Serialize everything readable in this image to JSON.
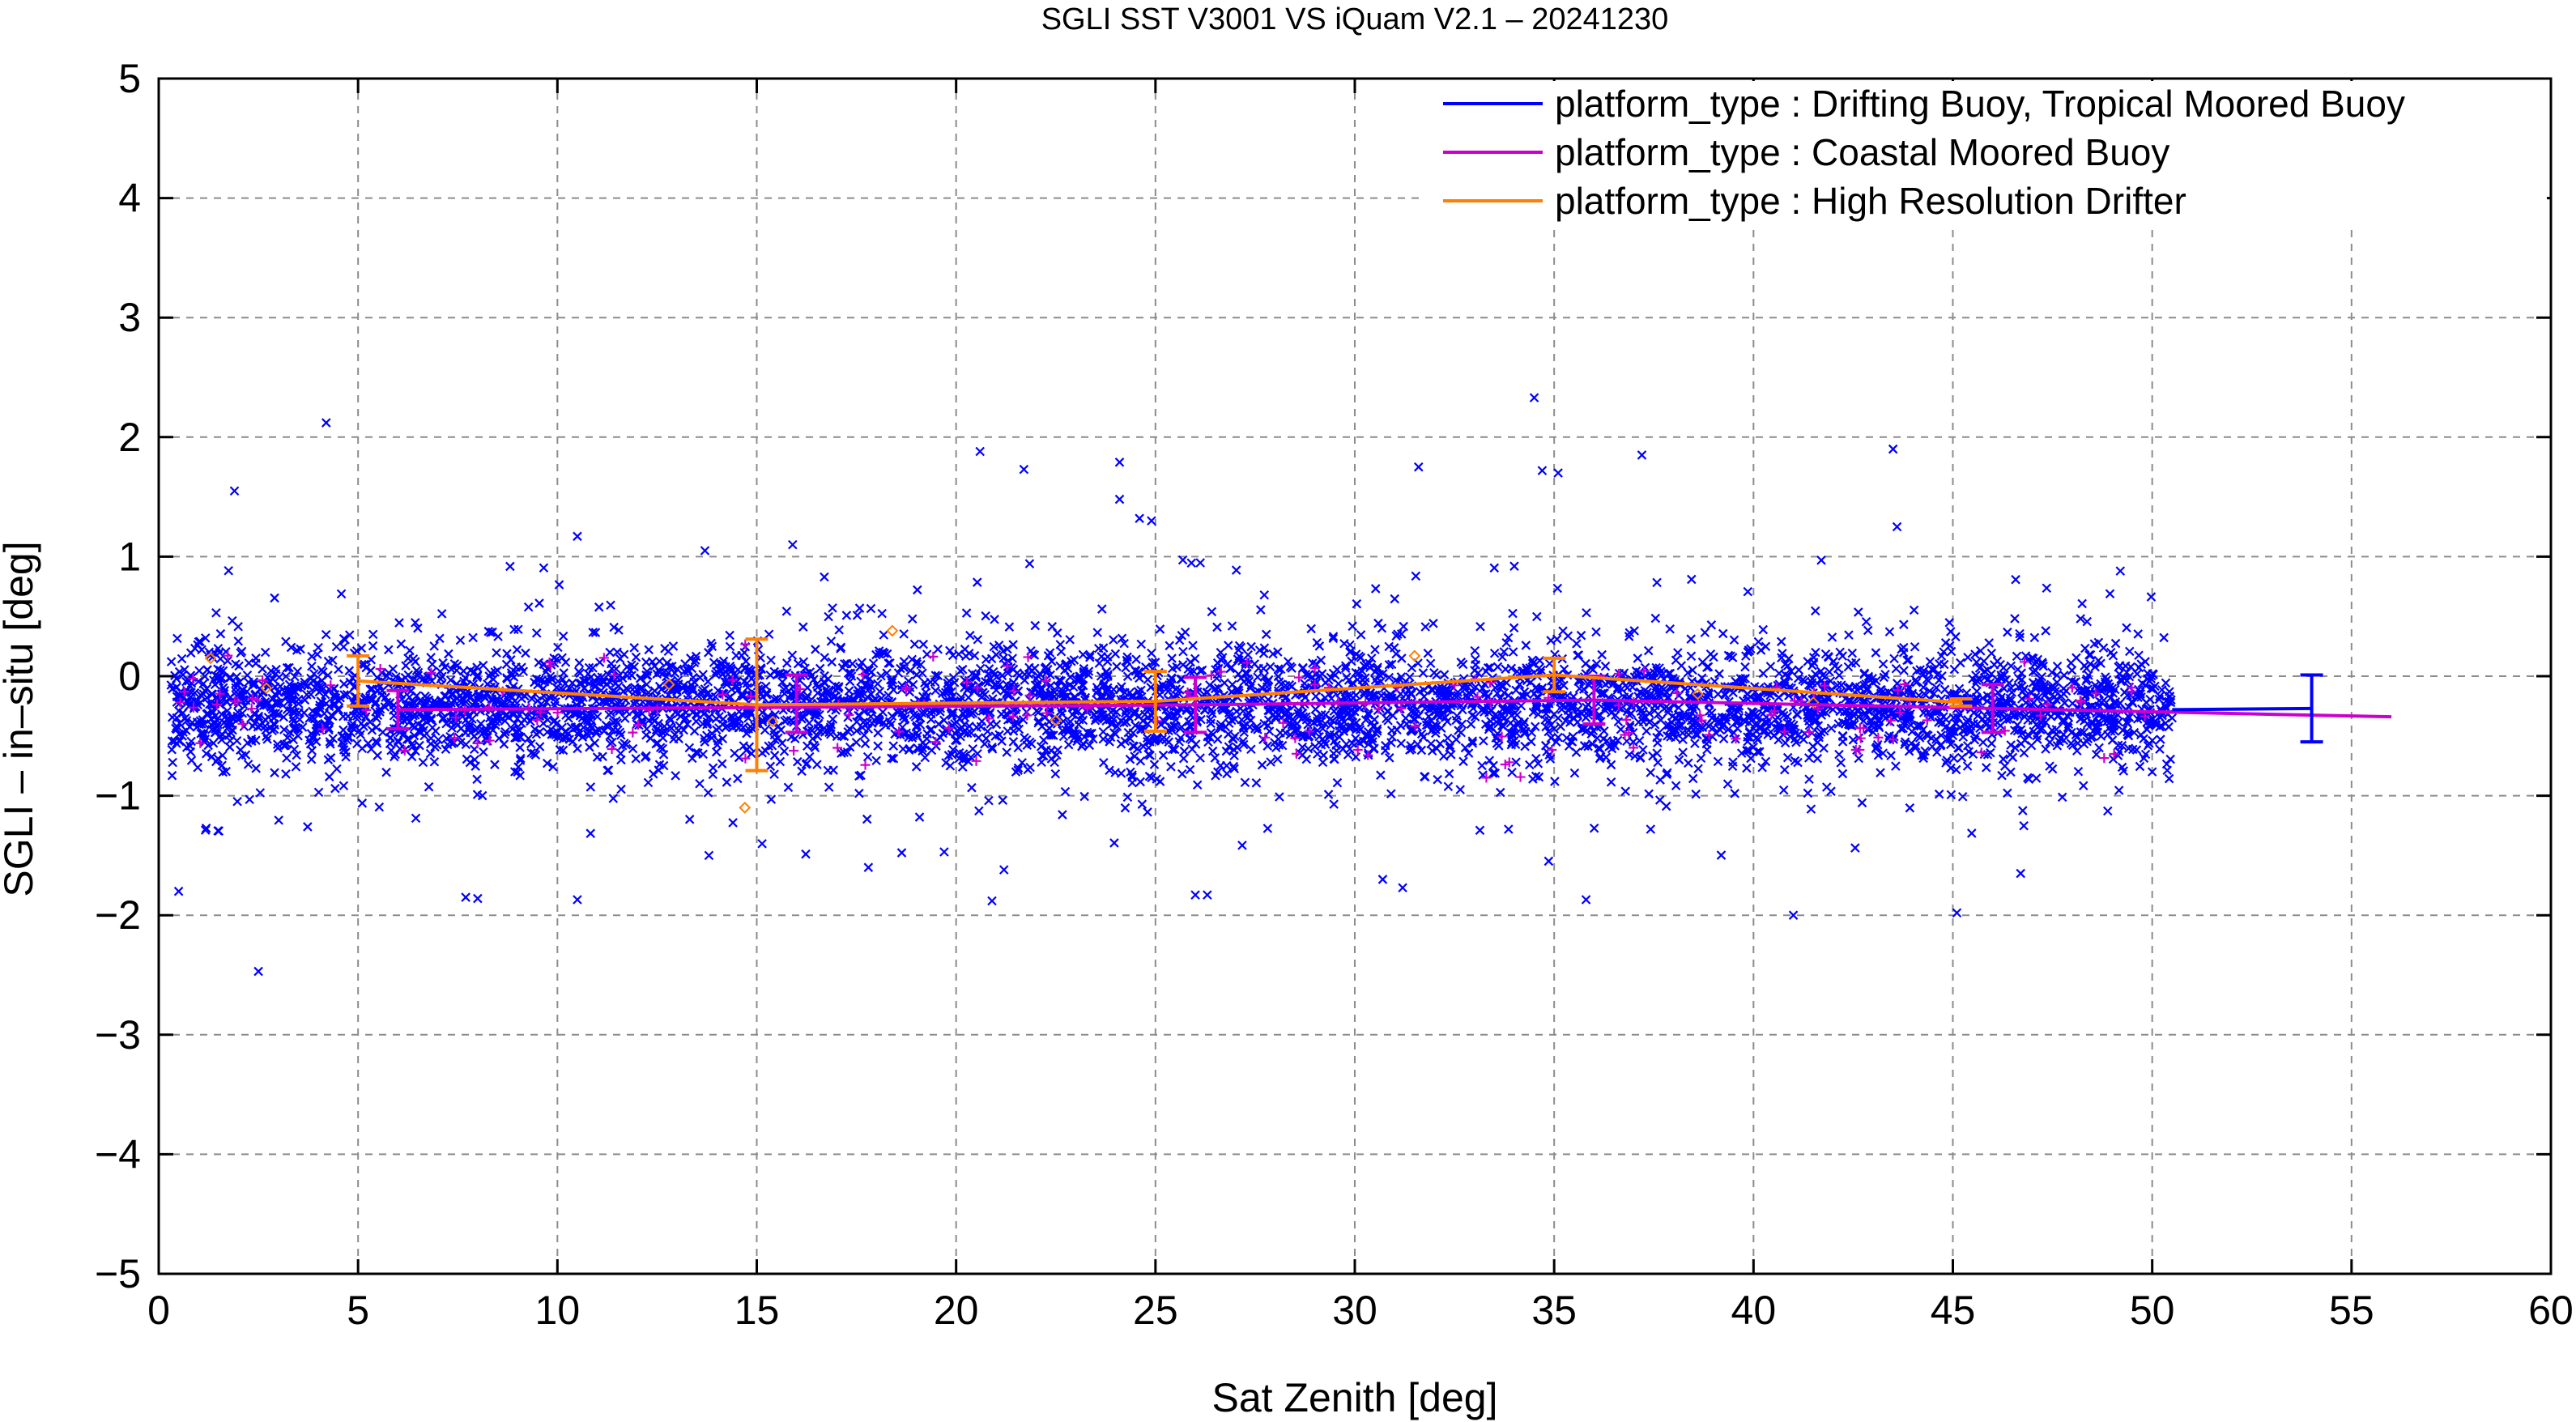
{
  "chart_data": {
    "type": "scatter",
    "title": "SGLI SST V3001 VS iQuam V2.1  – 20241230",
    "xlabel": "Sat Zenith [deg]",
    "ylabel": "SGLI – in–situ [deg]",
    "xlim": [
      0,
      60
    ],
    "ylim": [
      -5,
      5
    ],
    "x_ticks": [
      0,
      5,
      10,
      15,
      20,
      25,
      30,
      35,
      40,
      45,
      50,
      55,
      60
    ],
    "y_ticks": [
      -5,
      -4,
      -3,
      -2,
      -1,
      0,
      1,
      2,
      3,
      4,
      5
    ],
    "x_tick_labels": [
      "0",
      "5",
      "10",
      "15",
      "20",
      "25",
      "30",
      "35",
      "40",
      "45",
      "50",
      "55",
      "60"
    ],
    "y_tick_labels": [
      "−5",
      "−4",
      "−3",
      "−2",
      "−1",
      "0",
      "1",
      "2",
      "3",
      "4",
      "5"
    ],
    "grid": true,
    "legend_position": "top-right",
    "series": [
      {
        "name": "platform_type : Drifting Buoy, Tropical Moored Buoy",
        "color": "#0000ff",
        "marker": "x",
        "scatter_x_range": [
          0.3,
          50.5
        ],
        "scatter_center": -0.25,
        "scatter_spread": 0.4,
        "outliers": [
          {
            "x": 4.2,
            "y": 2.12
          },
          {
            "x": 1.9,
            "y": 1.55
          },
          {
            "x": 2.5,
            "y": -2.47
          },
          {
            "x": 0.5,
            "y": -1.8
          },
          {
            "x": 10.5,
            "y": 1.17
          },
          {
            "x": 10.5,
            "y": -1.87
          },
          {
            "x": 20.6,
            "y": 1.88
          },
          {
            "x": 21.7,
            "y": 1.73
          },
          {
            "x": 24.1,
            "y": 1.79
          },
          {
            "x": 24.1,
            "y": 1.48
          },
          {
            "x": 31.6,
            "y": 1.75
          },
          {
            "x": 34.5,
            "y": 2.33
          },
          {
            "x": 34.7,
            "y": 1.72
          },
          {
            "x": 35.1,
            "y": 1.7
          },
          {
            "x": 37.2,
            "y": 1.85
          },
          {
            "x": 43.5,
            "y": 1.9
          },
          {
            "x": 43.6,
            "y": 1.25
          },
          {
            "x": 41.0,
            "y": -2.0
          },
          {
            "x": 45.1,
            "y": -1.98
          },
          {
            "x": 20.9,
            "y": -1.88
          },
          {
            "x": 7.7,
            "y": -1.85
          },
          {
            "x": 8.0,
            "y": -1.86
          },
          {
            "x": 31.2,
            "y": -1.77
          },
          {
            "x": 35.8,
            "y": -1.87
          },
          {
            "x": 26.0,
            "y": -1.83
          },
          {
            "x": 26.3,
            "y": -1.83
          },
          {
            "x": 30.7,
            "y": -1.7
          },
          {
            "x": 19.7,
            "y": -1.47
          },
          {
            "x": 21.2,
            "y": -1.62
          },
          {
            "x": 13.7,
            "y": 1.05
          },
          {
            "x": 15.9,
            "y": 1.1
          },
          {
            "x": 24.6,
            "y": 1.32
          },
          {
            "x": 24.9,
            "y": 1.3
          },
          {
            "x": 41.7,
            "y": 0.97
          },
          {
            "x": 49.2,
            "y": 0.88
          },
          {
            "x": 46.7,
            "y": -1.65
          },
          {
            "x": 13.8,
            "y": -1.5
          },
          {
            "x": 17.8,
            "y": -1.6
          },
          {
            "x": 34.0,
            "y": 0.92
          }
        ],
        "mean_x": [
          54.0
        ],
        "mean_y": [
          -0.27
        ],
        "err": [
          0.28
        ],
        "line_x": [
          50.5,
          54.0
        ],
        "line_y": [
          -0.28,
          -0.27
        ]
      },
      {
        "name": "platform_type : Coastal Moored Buoy",
        "color": "#cc00cc",
        "marker": "+",
        "line_x": [
          6,
          16,
          26,
          36,
          46,
          56
        ],
        "line_y": [
          -0.28,
          -0.26,
          -0.24,
          -0.2,
          -0.27,
          -0.34
        ],
        "err": [
          0.16,
          0.24,
          0.23,
          0.2,
          0.2,
          0.0
        ],
        "err_x": [
          6,
          16,
          26,
          36,
          46
        ],
        "err_y": [
          -0.28,
          -0.23,
          -0.24,
          -0.2,
          -0.27
        ]
      },
      {
        "name": "platform_type : High Resolution Drifter",
        "color": "#ff8000",
        "marker": "diamond",
        "line_x": [
          5,
          15,
          25,
          35,
          45.2
        ],
        "line_y": [
          -0.04,
          -0.24,
          -0.21,
          0.01,
          -0.22
        ],
        "err": [
          0.21,
          0.55,
          0.25,
          0.14,
          0.03
        ],
        "scatter": [
          {
            "x": 2.7,
            "y": -0.1
          },
          {
            "x": 14.7,
            "y": -1.1
          },
          {
            "x": 18.4,
            "y": 0.38
          },
          {
            "x": 31.5,
            "y": 0.17
          },
          {
            "x": 22.5,
            "y": -0.37
          },
          {
            "x": 15.4,
            "y": -0.38
          },
          {
            "x": 38.6,
            "y": -0.15
          },
          {
            "x": 41.5,
            "y": -0.22
          },
          {
            "x": 1.3,
            "y": 0.15
          },
          {
            "x": 12.8,
            "y": -0.07
          }
        ]
      }
    ]
  }
}
